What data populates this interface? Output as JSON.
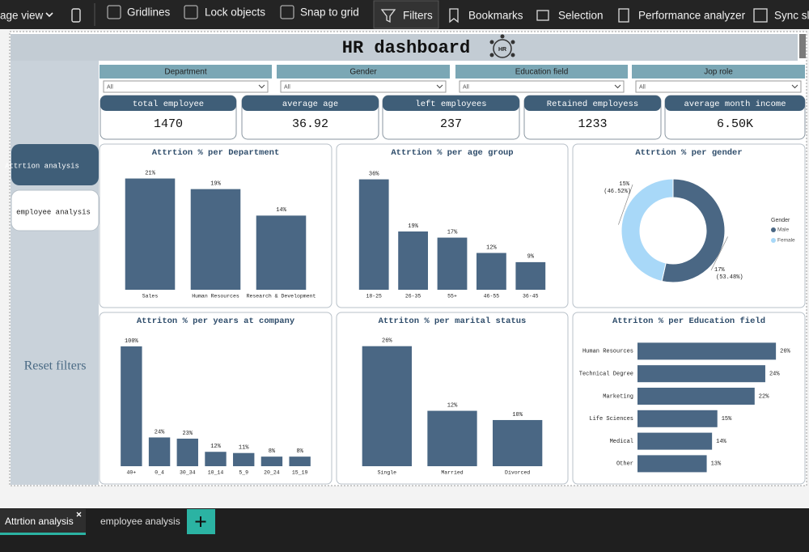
{
  "toolbar": {
    "items": [
      "age view",
      "Gridlines",
      "Lock objects",
      "Snap to grid",
      "Filters",
      "Bookmarks",
      "Selection",
      "Performance analyzer",
      "Sync sli"
    ]
  },
  "header": {
    "title": "HR dashboard",
    "logo": "HR"
  },
  "slicers": [
    {
      "label": "Department",
      "value": "All"
    },
    {
      "label": "Gender",
      "value": "All"
    },
    {
      "label": "Education field",
      "value": "All"
    },
    {
      "label": "Jop role",
      "value": "All"
    }
  ],
  "kpis": [
    {
      "label": "total employee",
      "value": "1470"
    },
    {
      "label": "average age",
      "value": "36.92"
    },
    {
      "label": "left employees",
      "value": "237"
    },
    {
      "label": "Retained employess",
      "value": "1233"
    },
    {
      "label": "average month income",
      "value": "6.50K"
    }
  ],
  "nav": {
    "buttons": [
      "Attrtion analysis",
      "employee analysis"
    ],
    "reset": "Reset filters"
  },
  "tabs": [
    "Attrtion analysis",
    "employee analysis"
  ],
  "chart_data": [
    {
      "type": "bar",
      "title": "Attrtion % per Department",
      "categories": [
        "Sales",
        "Human Resources",
        "Research & Development"
      ],
      "values": [
        21,
        19,
        14
      ],
      "value_labels": [
        "21%",
        "19%",
        "14%"
      ],
      "ylim": [
        0,
        22
      ],
      "color": "#4a6784"
    },
    {
      "type": "bar",
      "title": "Attrtion % per age group",
      "categories": [
        "18-25",
        "26-35",
        "55+",
        "46-55",
        "36-45"
      ],
      "values": [
        36,
        19,
        17,
        12,
        9
      ],
      "value_labels": [
        "36%",
        "19%",
        "17%",
        "12%",
        "9%"
      ],
      "ylim": [
        0,
        38
      ],
      "color": "#4a6784"
    },
    {
      "type": "pie",
      "title": "Attrtion % per gender",
      "categories": [
        "Male",
        "Female"
      ],
      "values": [
        53.48,
        46.52
      ],
      "value_labels": [
        "(53.48%)",
        "(46.52%)"
      ],
      "share_labels": [
        "17%",
        "15%"
      ],
      "colors": [
        "#4a6784",
        "#a8d8f8"
      ],
      "legend_title": "Gender"
    },
    {
      "type": "bar",
      "title": "Attriton % per years at company",
      "categories": [
        "40+",
        "0_4",
        "30_34",
        "10_14",
        "5_9",
        "20_24",
        "15_19"
      ],
      "values": [
        100,
        24,
        23,
        12,
        11,
        8,
        8
      ],
      "value_labels": [
        "100%",
        "24%",
        "23%",
        "12%",
        "11%",
        "8%",
        "8%"
      ],
      "ylim": [
        0,
        104
      ],
      "color": "#4a6784"
    },
    {
      "type": "bar",
      "title": "Attriton % per marital status",
      "categories": [
        "Single",
        "Married",
        "Divorced"
      ],
      "values": [
        26,
        12,
        10
      ],
      "value_labels": [
        "26%",
        "12%",
        "10%"
      ],
      "ylim": [
        0,
        27
      ],
      "color": "#4a6784"
    },
    {
      "type": "barh",
      "title": "Attriton % per Education field",
      "categories": [
        "Human Resources",
        "Technical Degree",
        "Marketing",
        "Life Sciences",
        "Medical",
        "Other"
      ],
      "values": [
        26,
        24,
        22,
        15,
        14,
        13
      ],
      "value_labels": [
        "26%",
        "24%",
        "22%",
        "15%",
        "14%",
        "13%"
      ],
      "xlim": [
        0,
        27.5
      ],
      "color": "#4a6784"
    }
  ]
}
